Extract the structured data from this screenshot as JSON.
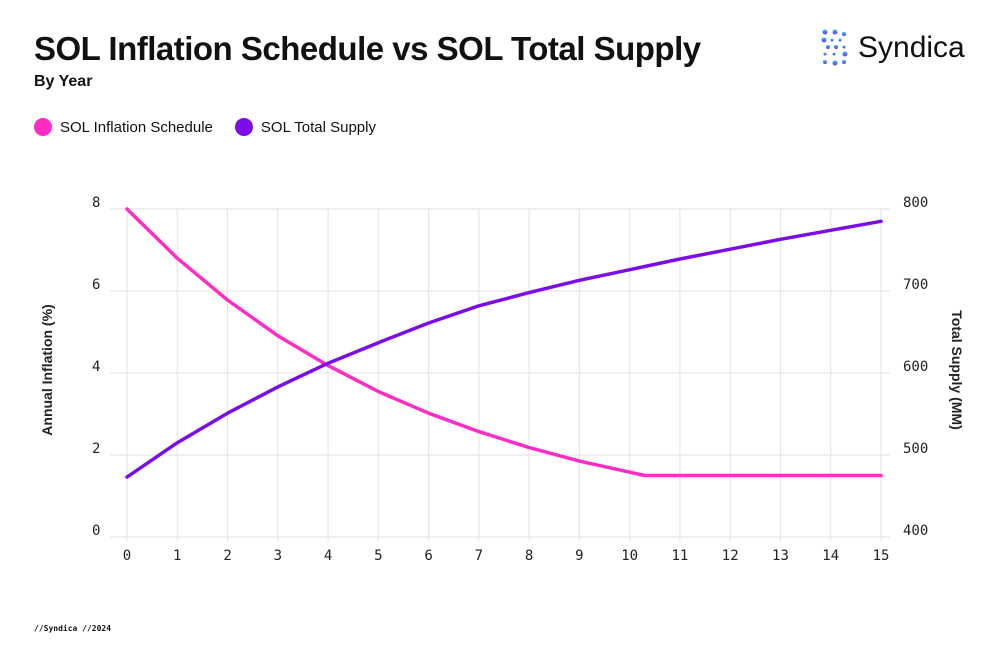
{
  "header": {
    "title": "SOL Inflation Schedule vs SOL Total Supply",
    "subtitle": "By Year"
  },
  "logo": {
    "text": "Syndica"
  },
  "footer": {
    "text": "//Syndica //2024"
  },
  "chart_data": {
    "type": "line",
    "title": "SOL Inflation Schedule vs SOL Total Supply",
    "subtitle": "By Year",
    "xlabel": "",
    "ylabel_left": "Annual Inflation (%)",
    "ylabel_right": "Total Supply (MM)",
    "xlim": [
      0,
      15
    ],
    "ylim_left": [
      0,
      8
    ],
    "ylim_right": [
      400,
      800
    ],
    "x_ticks": [
      0,
      1,
      2,
      3,
      4,
      5,
      6,
      7,
      8,
      9,
      10,
      11,
      12,
      13,
      14,
      15
    ],
    "y_left_ticks": [
      0,
      2,
      4,
      6,
      8
    ],
    "y_right_ticks": [
      400,
      500,
      600,
      700,
      800
    ],
    "grid": true,
    "legend_position": "top-left",
    "series": [
      {
        "name": "SOL Inflation Schedule",
        "axis": "left",
        "color": "#ff2dc4",
        "x": [
          0,
          1,
          2,
          3,
          4,
          5,
          6,
          7,
          8,
          9,
          10,
          10.3,
          11,
          12,
          13,
          14,
          15
        ],
        "y": [
          8,
          6.8,
          5.78,
          4.91,
          4.18,
          3.55,
          3.02,
          2.57,
          2.18,
          1.85,
          1.58,
          1.5,
          1.5,
          1.5,
          1.5,
          1.5,
          1.5
        ]
      },
      {
        "name": "SOL Total Supply",
        "axis": "right",
        "color": "#7b0ee6",
        "x": [
          0,
          1,
          2,
          3,
          4,
          5,
          6,
          7,
          8,
          9,
          10,
          11,
          12,
          13,
          14,
          15
        ],
        "y": [
          473,
          515,
          551,
          583,
          612,
          637,
          661,
          682,
          698,
          713,
          726,
          739,
          751,
          763,
          774,
          785
        ]
      }
    ]
  }
}
